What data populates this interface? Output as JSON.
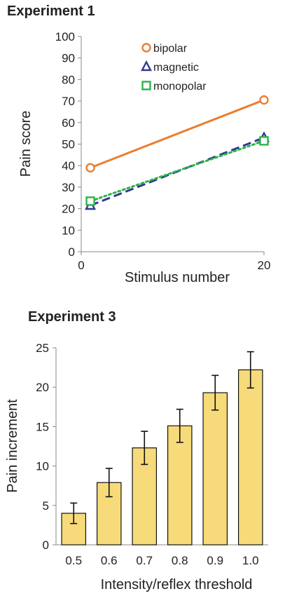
{
  "chart_data": [
    {
      "type": "line",
      "title": "Experiment 1",
      "xlabel": "Stimulus number",
      "ylabel": "Pain score",
      "xlim": [
        0,
        20
      ],
      "ylim": [
        0,
        100
      ],
      "x_ticks": [
        "0",
        "20"
      ],
      "y_ticks": [
        "0",
        "10",
        "20",
        "30",
        "40",
        "50",
        "60",
        "70",
        "80",
        "90",
        "100"
      ],
      "grid": false,
      "legend_position": "top-center",
      "x": [
        1,
        20
      ],
      "series": [
        {
          "name": "bipolar",
          "values": [
            39,
            70.5
          ],
          "color": "#ED7D31",
          "marker": "circle",
          "dash": "solid"
        },
        {
          "name": "magnetic",
          "values": [
            21.5,
            53
          ],
          "color": "#2F3A8F",
          "marker": "triangle",
          "dash": "dash"
        },
        {
          "name": "monopolar",
          "values": [
            23.5,
            51.5
          ],
          "color": "#2DB34A",
          "marker": "square",
          "dash": "dot"
        }
      ]
    },
    {
      "type": "bar",
      "title": "Experiment 3",
      "xlabel": "Intensity/reflex threshold",
      "ylabel": "Pain increment",
      "ylim": [
        0,
        25
      ],
      "y_ticks": [
        "0",
        "5",
        "10",
        "15",
        "20",
        "25"
      ],
      "grid": false,
      "bar_color": "#F7DB7A",
      "categories": [
        "0.5",
        "0.6",
        "0.7",
        "0.8",
        "0.9",
        "1.0"
      ],
      "values": [
        4.0,
        7.9,
        12.3,
        15.1,
        19.3,
        22.2
      ],
      "errors": [
        1.3,
        1.8,
        2.1,
        2.1,
        2.2,
        2.3
      ]
    }
  ]
}
